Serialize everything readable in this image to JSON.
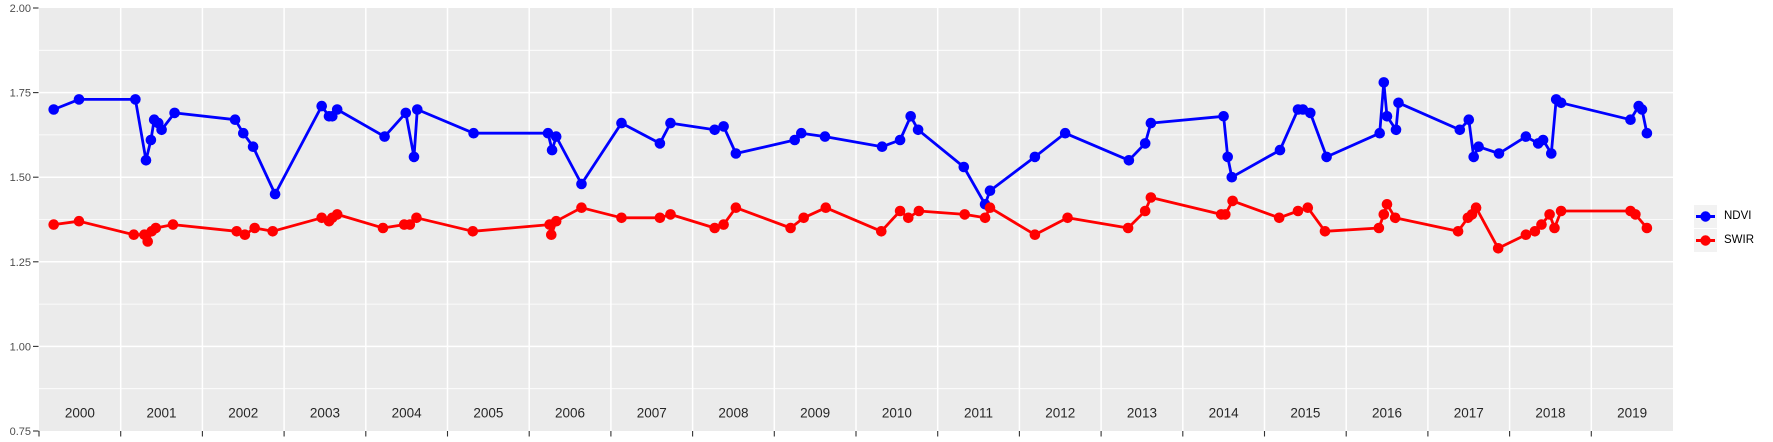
{
  "chart_data": {
    "type": "line",
    "title": "",
    "xlabel": "",
    "ylabel": "",
    "grid": true,
    "panel": {
      "bg": "#EBEBEB",
      "grid_color": "#FFFFFF",
      "tick_color": "#333333"
    },
    "x_axis": {
      "xlim": [
        2000,
        2020
      ],
      "tick_years": [
        2000,
        2001,
        2002,
        2003,
        2004,
        2005,
        2006,
        2007,
        2008,
        2009,
        2010,
        2011,
        2012,
        2013,
        2014,
        2015,
        2016,
        2017,
        2018,
        2019
      ],
      "labels": [
        "2000",
        "2001",
        "2002",
        "2003",
        "2004",
        "2005",
        "2006",
        "2007",
        "2008",
        "2009",
        "2010",
        "2011",
        "2012",
        "2013",
        "2014",
        "2015",
        "2016",
        "2017",
        "2018",
        "2019"
      ],
      "label_positions": [
        2000.5,
        2001.5,
        2002.5,
        2003.5,
        2004.5,
        2005.5,
        2006.5,
        2007.5,
        2008.5,
        2009.5,
        2010.5,
        2011.5,
        2012.5,
        2013.5,
        2014.5,
        2015.5,
        2016.5,
        2017.5,
        2018.5,
        2019.5
      ]
    },
    "y_axis": {
      "ylim": [
        0.75,
        2.0
      ],
      "tick_values": [
        2.0,
        1.75,
        1.5,
        1.25,
        1.0,
        0.75
      ],
      "tick_labels": [
        "2.00",
        "1.75",
        "1.50",
        "1.25",
        "1.00",
        "0.75"
      ],
      "major_step": 0.25,
      "minor_step": 0.125
    },
    "legend": {
      "position": "right",
      "entries": [
        {
          "label": "NDVI",
          "color": "#0000FF"
        },
        {
          "label": "SWIR",
          "color": "#FF0000"
        }
      ]
    },
    "series": [
      {
        "name": "NDVI",
        "color": "#0000FF",
        "points": [
          [
            2000.18,
            1.7
          ],
          [
            2000.49,
            1.73
          ],
          [
            2001.18,
            1.73
          ],
          [
            2001.31,
            1.55
          ],
          [
            2001.37,
            1.61
          ],
          [
            2001.41,
            1.67
          ],
          [
            2001.46,
            1.66
          ],
          [
            2001.5,
            1.64
          ],
          [
            2001.66,
            1.69
          ],
          [
            2002.4,
            1.67
          ],
          [
            2002.5,
            1.63
          ],
          [
            2002.62,
            1.59
          ],
          [
            2002.89,
            1.45
          ],
          [
            2003.46,
            1.71
          ],
          [
            2003.55,
            1.68
          ],
          [
            2003.59,
            1.68
          ],
          [
            2003.65,
            1.7
          ],
          [
            2004.23,
            1.62
          ],
          [
            2004.49,
            1.69
          ],
          [
            2004.59,
            1.56
          ],
          [
            2004.63,
            1.7
          ],
          [
            2005.32,
            1.63
          ],
          [
            2006.23,
            1.63
          ],
          [
            2006.28,
            1.58
          ],
          [
            2006.33,
            1.62
          ],
          [
            2006.64,
            1.48
          ],
          [
            2007.13,
            1.66
          ],
          [
            2007.6,
            1.6
          ],
          [
            2007.73,
            1.66
          ],
          [
            2008.27,
            1.64
          ],
          [
            2008.38,
            1.65
          ],
          [
            2008.53,
            1.57
          ],
          [
            2009.25,
            1.61
          ],
          [
            2009.33,
            1.63
          ],
          [
            2009.62,
            1.62
          ],
          [
            2010.32,
            1.59
          ],
          [
            2010.54,
            1.61
          ],
          [
            2010.67,
            1.68
          ],
          [
            2010.76,
            1.64
          ],
          [
            2011.32,
            1.53
          ],
          [
            2011.58,
            1.42
          ],
          [
            2011.64,
            1.46
          ],
          [
            2012.19,
            1.56
          ],
          [
            2012.56,
            1.63
          ],
          [
            2013.34,
            1.55
          ],
          [
            2013.54,
            1.6
          ],
          [
            2013.61,
            1.66
          ],
          [
            2014.5,
            1.68
          ],
          [
            2014.55,
            1.56
          ],
          [
            2014.6,
            1.5
          ],
          [
            2015.19,
            1.58
          ],
          [
            2015.41,
            1.7
          ],
          [
            2015.47,
            1.7
          ],
          [
            2015.56,
            1.69
          ],
          [
            2015.76,
            1.56
          ],
          [
            2016.41,
            1.63
          ],
          [
            2016.46,
            1.78
          ],
          [
            2016.5,
            1.68
          ],
          [
            2016.61,
            1.64
          ],
          [
            2016.64,
            1.72
          ],
          [
            2017.39,
            1.64
          ],
          [
            2017.5,
            1.67
          ],
          [
            2017.56,
            1.56
          ],
          [
            2017.62,
            1.59
          ],
          [
            2017.87,
            1.57
          ],
          [
            2018.2,
            1.62
          ],
          [
            2018.35,
            1.6
          ],
          [
            2018.41,
            1.61
          ],
          [
            2018.51,
            1.57
          ],
          [
            2018.57,
            1.73
          ],
          [
            2018.63,
            1.72
          ],
          [
            2019.48,
            1.67
          ],
          [
            2019.58,
            1.71
          ],
          [
            2019.62,
            1.7
          ],
          [
            2019.68,
            1.63
          ]
        ]
      },
      {
        "name": "SWIR",
        "color": "#FF0000",
        "points": [
          [
            2000.18,
            1.36
          ],
          [
            2000.49,
            1.37
          ],
          [
            2001.16,
            1.33
          ],
          [
            2001.29,
            1.33
          ],
          [
            2001.33,
            1.31
          ],
          [
            2001.38,
            1.34
          ],
          [
            2001.43,
            1.35
          ],
          [
            2001.64,
            1.36
          ],
          [
            2002.42,
            1.34
          ],
          [
            2002.52,
            1.33
          ],
          [
            2002.64,
            1.35
          ],
          [
            2002.86,
            1.34
          ],
          [
            2003.46,
            1.38
          ],
          [
            2003.55,
            1.37
          ],
          [
            2003.59,
            1.38
          ],
          [
            2003.65,
            1.39
          ],
          [
            2004.21,
            1.35
          ],
          [
            2004.47,
            1.36
          ],
          [
            2004.54,
            1.36
          ],
          [
            2004.62,
            1.38
          ],
          [
            2005.31,
            1.34
          ],
          [
            2006.25,
            1.36
          ],
          [
            2006.27,
            1.33
          ],
          [
            2006.33,
            1.37
          ],
          [
            2006.64,
            1.41
          ],
          [
            2007.13,
            1.38
          ],
          [
            2007.6,
            1.38
          ],
          [
            2007.73,
            1.39
          ],
          [
            2008.27,
            1.35
          ],
          [
            2008.38,
            1.36
          ],
          [
            2008.53,
            1.41
          ],
          [
            2009.2,
            1.35
          ],
          [
            2009.36,
            1.38
          ],
          [
            2009.63,
            1.41
          ],
          [
            2010.31,
            1.34
          ],
          [
            2010.54,
            1.4
          ],
          [
            2010.64,
            1.38
          ],
          [
            2010.77,
            1.4
          ],
          [
            2011.33,
            1.39
          ],
          [
            2011.58,
            1.38
          ],
          [
            2011.64,
            1.41
          ],
          [
            2012.19,
            1.33
          ],
          [
            2012.59,
            1.38
          ],
          [
            2013.33,
            1.35
          ],
          [
            2013.54,
            1.4
          ],
          [
            2013.61,
            1.44
          ],
          [
            2014.47,
            1.39
          ],
          [
            2014.52,
            1.39
          ],
          [
            2014.61,
            1.43
          ],
          [
            2015.18,
            1.38
          ],
          [
            2015.41,
            1.4
          ],
          [
            2015.53,
            1.41
          ],
          [
            2015.74,
            1.34
          ],
          [
            2016.4,
            1.35
          ],
          [
            2016.46,
            1.39
          ],
          [
            2016.5,
            1.42
          ],
          [
            2016.6,
            1.38
          ],
          [
            2017.37,
            1.34
          ],
          [
            2017.49,
            1.38
          ],
          [
            2017.54,
            1.39
          ],
          [
            2017.59,
            1.41
          ],
          [
            2017.86,
            1.29
          ],
          [
            2018.2,
            1.33
          ],
          [
            2018.31,
            1.34
          ],
          [
            2018.39,
            1.36
          ],
          [
            2018.49,
            1.39
          ],
          [
            2018.55,
            1.35
          ],
          [
            2018.63,
            1.4
          ],
          [
            2019.48,
            1.4
          ],
          [
            2019.54,
            1.39
          ],
          [
            2019.68,
            1.35
          ]
        ]
      }
    ]
  }
}
